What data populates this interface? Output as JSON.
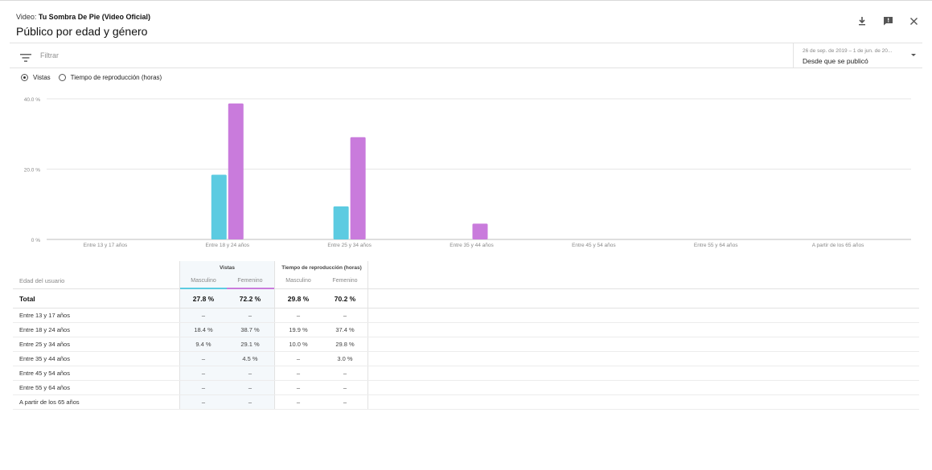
{
  "header": {
    "video_prefix": "Video: ",
    "video_title": "Tu Sombra De Pie (Video Oficial)",
    "title": "Público por edad y género"
  },
  "filter": {
    "placeholder": "Filtrar"
  },
  "date": {
    "range": "26 de sep. de 2019 – 1 de jun. de 20...",
    "label": "Desde que se publicó"
  },
  "metric_toggle": {
    "selected": "Vistas",
    "options": [
      "Vistas",
      "Tiempo de reproducción (horas)"
    ]
  },
  "colors": {
    "masculino": "#5ccbe1",
    "femenino": "#c97bdc",
    "grid": "#e6e6e6"
  },
  "chart_data": {
    "type": "bar",
    "categories": [
      "Entre 13 y 17 años",
      "Entre 18 y 24 años",
      "Entre 25 y 34 años",
      "Entre 35 y 44 años",
      "Entre 45 y 54 años",
      "Entre 55 y 64 años",
      "A partir de los 65 años"
    ],
    "series": [
      {
        "name": "Masculino",
        "values": [
          0,
          18.4,
          9.4,
          0,
          0,
          0,
          0
        ]
      },
      {
        "name": "Femenino",
        "values": [
          0,
          38.7,
          29.1,
          4.5,
          0,
          0,
          0
        ]
      }
    ],
    "y_ticks": [
      "40.0 %",
      "20.0 %",
      "0 %"
    ],
    "ylim": [
      0,
      40
    ],
    "xlabel": "",
    "ylabel": ""
  },
  "table": {
    "row_header": "Edad del usuario",
    "groups": [
      "Vistas",
      "Tiempo de reproducción (horas)"
    ],
    "subheads": [
      "Masculino",
      "Femenino",
      "Masculino",
      "Femenino"
    ],
    "total": {
      "label": "Total",
      "values": [
        "27.8 %",
        "72.2 %",
        "29.8 %",
        "70.2 %"
      ]
    },
    "rows": [
      {
        "label": "Entre 13 y 17 años",
        "values": [
          "–",
          "–",
          "–",
          "–"
        ]
      },
      {
        "label": "Entre 18 y 24 años",
        "values": [
          "18.4 %",
          "38.7 %",
          "19.9 %",
          "37.4 %"
        ]
      },
      {
        "label": "Entre 25 y 34 años",
        "values": [
          "9.4 %",
          "29.1 %",
          "10.0 %",
          "29.8 %"
        ]
      },
      {
        "label": "Entre 35 y 44 años",
        "values": [
          "–",
          "4.5 %",
          "–",
          "3.0 %"
        ]
      },
      {
        "label": "Entre 45 y 54 años",
        "values": [
          "–",
          "–",
          "–",
          "–"
        ]
      },
      {
        "label": "Entre 55 y 64 años",
        "values": [
          "–",
          "–",
          "–",
          "–"
        ]
      },
      {
        "label": "A partir de los 65 años",
        "values": [
          "–",
          "–",
          "–",
          "–"
        ]
      }
    ]
  }
}
